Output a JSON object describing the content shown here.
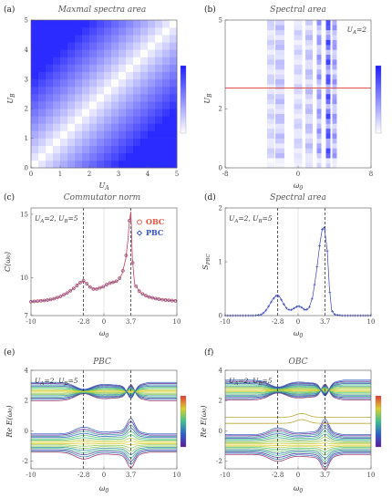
{
  "chart_data": [
    {
      "id": "a",
      "type": "heatmap",
      "panel_label": "(a)",
      "title": "Maxmal spectra area",
      "xlabel": "U_A",
      "ylabel": "U_B",
      "xticks": [
        "0",
        "1",
        "2",
        "3",
        "4",
        "5"
      ],
      "yticks": [
        "0",
        "1",
        "2",
        "3",
        "4",
        "5"
      ],
      "grid_size": 20,
      "xlim": [
        0,
        5
      ],
      "ylim": [
        0,
        5
      ],
      "colormap": [
        "#ffffff",
        "#2020ff"
      ]
    },
    {
      "id": "b",
      "type": "heatmap",
      "panel_label": "(b)",
      "title": "Spectral area",
      "annotation": "U_A=2",
      "xlabel": "ω_0",
      "ylabel": "U_B",
      "xticks": [
        "-8",
        "0",
        "8"
      ],
      "yticks": [
        "0",
        "2",
        "5"
      ],
      "xlim": [
        -8,
        8
      ],
      "ylim": [
        0,
        5
      ],
      "hline_y": 2.7,
      "hline_color": "#e05050",
      "column_intensity": [
        {
          "x": -3.0,
          "width": 0.8,
          "value": 0.25
        },
        {
          "x": -2.0,
          "width": 1.0,
          "value": 0.35
        },
        {
          "x": 0.0,
          "width": 0.9,
          "value": 0.25
        },
        {
          "x": 1.2,
          "width": 0.8,
          "value": 0.35
        },
        {
          "x": 2.3,
          "width": 0.5,
          "value": 0.55
        },
        {
          "x": 3.3,
          "width": 0.5,
          "value": 0.95
        },
        {
          "x": 4.0,
          "width": 0.5,
          "value": 0.55
        }
      ]
    },
    {
      "id": "c",
      "type": "scatter",
      "panel_label": "(c)",
      "title": "Commutator norm",
      "annotation": "U_A=2, U_B=5",
      "xlabel": "ω_0",
      "ylabel": "C(ω_0)",
      "xticks": [
        "-10",
        "-2.8",
        "0",
        "3.7",
        "10"
      ],
      "xtick_values": [
        -10,
        -2.8,
        0,
        3.7,
        10
      ],
      "yticks": [
        "7",
        "10",
        "15"
      ],
      "ytick_values": [
        7,
        10,
        15
      ],
      "xlim": [
        -10,
        10
      ],
      "ylim": [
        7,
        15.5
      ],
      "vlines": [
        -2.8,
        3.7
      ],
      "series": [
        {
          "name": "OBC",
          "color": "#e8503a",
          "marker": "circle-open",
          "x": [
            -10,
            -9,
            -8,
            -7,
            -6,
            -5,
            -4,
            -3.5,
            -3,
            -2.8,
            -2.5,
            -2,
            -1.5,
            -1,
            -0.5,
            0,
            0.5,
            1,
            1.5,
            2,
            2.5,
            3,
            3.3,
            3.5,
            3.7,
            3.9,
            4.2,
            5,
            6,
            7,
            8,
            9,
            10
          ],
          "y": [
            8.1,
            8.15,
            8.2,
            8.3,
            8.5,
            8.8,
            9.2,
            9.5,
            9.7,
            9.75,
            9.6,
            9.3,
            9.1,
            9.1,
            9.2,
            9.3,
            9.5,
            9.6,
            9.65,
            9.8,
            10.3,
            11.5,
            13.0,
            14.5,
            15.2,
            11.5,
            9.5,
            8.8,
            8.5,
            8.35,
            8.25,
            8.2,
            8.15
          ]
        },
        {
          "name": "PBC",
          "color": "#3050d0",
          "marker": "diamond-open",
          "x": [
            -10,
            -9,
            -8,
            -7,
            -6,
            -5,
            -4,
            -3.5,
            -3,
            -2.8,
            -2.5,
            -2,
            -1.5,
            -1,
            -0.5,
            0,
            0.5,
            1,
            1.5,
            2,
            2.5,
            3,
            3.3,
            3.5,
            3.7,
            3.9,
            4.2,
            5,
            6,
            7,
            8,
            9,
            10
          ],
          "y": [
            8.1,
            8.15,
            8.2,
            8.3,
            8.5,
            8.8,
            9.2,
            9.5,
            9.7,
            9.75,
            9.6,
            9.3,
            9.1,
            9.1,
            9.2,
            9.3,
            9.5,
            9.6,
            9.65,
            9.8,
            10.3,
            11.5,
            13.0,
            14.5,
            15.2,
            11.5,
            9.5,
            8.8,
            8.5,
            8.35,
            8.25,
            8.2,
            8.15
          ]
        }
      ],
      "legend": "top-right"
    },
    {
      "id": "d",
      "type": "scatter",
      "panel_label": "(d)",
      "title": "Spectral area",
      "annotation": "U_A=2, U_B=5",
      "xlabel": "ω_0",
      "ylabel": "S_PBC",
      "xticks": [
        "-10",
        "-2.8",
        "0",
        "3.7",
        "10"
      ],
      "xtick_values": [
        -10,
        -2.8,
        0,
        3.7,
        10
      ],
      "yticks": [
        "0",
        "1",
        "2"
      ],
      "ytick_values": [
        0,
        1,
        2
      ],
      "xlim": [
        -10,
        10
      ],
      "ylim": [
        0,
        2
      ],
      "vlines": [
        -2.8,
        3.7
      ],
      "series": [
        {
          "color": "#3040c0",
          "marker": "plus",
          "x": [
            -10,
            -9,
            -8,
            -7,
            -6,
            -5,
            -4.5,
            -4,
            -3.5,
            -3,
            -2.8,
            -2.5,
            -2,
            -1.5,
            -1,
            -0.5,
            0,
            0.5,
            1,
            1.5,
            2,
            2.5,
            3,
            3.3,
            3.6,
            4,
            4.3,
            4.6,
            5,
            6,
            7,
            8,
            9,
            10
          ],
          "y": [
            0,
            0,
            0,
            0,
            0,
            0.02,
            0.08,
            0.18,
            0.3,
            0.37,
            0.38,
            0.34,
            0.22,
            0.12,
            0.1,
            0.14,
            0.18,
            0.15,
            0.1,
            0.14,
            0.35,
            0.8,
            1.35,
            1.6,
            1.65,
            1.2,
            0.5,
            0.1,
            0.02,
            0,
            0,
            0,
            0,
            0
          ]
        }
      ]
    },
    {
      "id": "e",
      "type": "line",
      "panel_label": "(e)",
      "title": "PBC",
      "annotation": "U_A=2, U_B=5",
      "xlabel": "ω_0",
      "ylabel": "Re E(ω_0)",
      "xticks": [
        "-10",
        "-2.8",
        "0",
        "3.7",
        "10"
      ],
      "xtick_values": [
        -10,
        -2.8,
        0,
        3.7,
        10
      ],
      "yticks": [
        "-2",
        "0",
        "2",
        "4"
      ],
      "ytick_values": [
        -2,
        0,
        2,
        4
      ],
      "xlim": [
        -10,
        10
      ],
      "ylim": [
        -2.5,
        4
      ],
      "vlines": [
        -2.8,
        3.7
      ],
      "bands": [
        {
          "center": 2.6,
          "spread": 1.2,
          "count": 16
        },
        {
          "center": -0.8,
          "spread": 1.2,
          "count": 16
        }
      ],
      "colormap": [
        "#b8b030",
        "#d8d030",
        "#40c080",
        "#3060c0",
        "#6020a0",
        "#e04040"
      ],
      "colorbar_ticks": [
        "",
        "",
        "",
        "",
        ""
      ]
    },
    {
      "id": "f",
      "type": "line",
      "panel_label": "(f)",
      "title": "OBC",
      "annotation": "U_A=2, U_B=5",
      "xlabel": "ω_0",
      "ylabel": "Re E(ω_0)",
      "xticks": [
        "-10",
        "-2.8",
        "0",
        "3.7",
        "10"
      ],
      "xtick_values": [
        -10,
        -2.8,
        0,
        3.7,
        10
      ],
      "yticks": [
        "-2",
        "0",
        "2",
        "4"
      ],
      "ytick_values": [
        -2,
        0,
        2,
        4
      ],
      "xlim": [
        -10,
        10
      ],
      "ylim": [
        -2.5,
        4
      ],
      "vlines": [
        -2.8,
        3.7
      ],
      "bands": [
        {
          "center": 2.7,
          "spread": 1.3,
          "count": 18
        },
        {
          "center": -0.9,
          "spread": 1.3,
          "count": 18
        }
      ],
      "edge_states": [
        0.9,
        0.5
      ],
      "colormap": [
        "#b8b030",
        "#d8d030",
        "#40c080",
        "#3060c0",
        "#6020a0",
        "#e04040"
      ],
      "colorbar_ticks": [
        "",
        "",
        "",
        "",
        ""
      ]
    }
  ]
}
